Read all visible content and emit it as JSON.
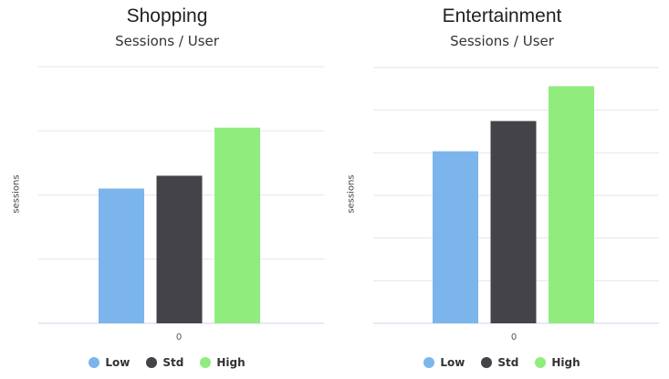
{
  "colors": {
    "low": "#7cb5ec",
    "std": "#434348",
    "high": "#90ed7d"
  },
  "chart_data": [
    {
      "type": "bar",
      "title": "Shopping",
      "subtitle": "Sessions / User",
      "ylabel": "sessions",
      "categories": [
        "0"
      ],
      "series": [
        {
          "name": "Low",
          "values": [
            2.1
          ]
        },
        {
          "name": "Std",
          "values": [
            2.3
          ]
        },
        {
          "name": "High",
          "values": [
            3.05
          ]
        }
      ],
      "ylim": [
        0,
        4
      ],
      "grid": true,
      "legend": "bottom-center"
    },
    {
      "type": "bar",
      "title": "Entertainment",
      "subtitle": "Sessions / User",
      "ylabel": "sessions",
      "categories": [
        "0"
      ],
      "series": [
        {
          "name": "Low",
          "values": [
            3.7
          ]
        },
        {
          "name": "Std",
          "values": [
            4.35
          ]
        },
        {
          "name": "High",
          "values": [
            5.1
          ]
        }
      ],
      "ylim": [
        0,
        5.5
      ],
      "grid": true,
      "legend": "bottom-center"
    }
  ]
}
